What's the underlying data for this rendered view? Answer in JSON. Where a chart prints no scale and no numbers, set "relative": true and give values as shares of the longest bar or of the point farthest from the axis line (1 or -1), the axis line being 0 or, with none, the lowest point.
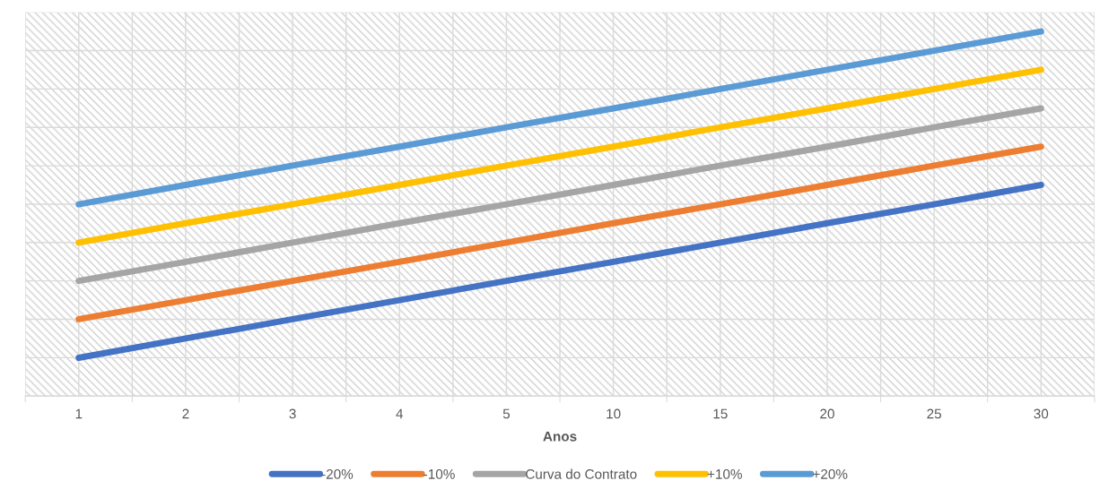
{
  "chart_data": {
    "type": "line",
    "xlabel": "Anos",
    "relative": true,
    "grid": true,
    "legend": "bottom",
    "marker": "none",
    "line_style": "solid",
    "categories": [
      "1",
      "2",
      "3",
      "4",
      "5",
      "10",
      "15",
      "20",
      "25",
      "30"
    ],
    "series": [
      {
        "name": "-20%",
        "color": "#4472c4",
        "values": [
          0.105,
          0.158,
          0.211,
          0.263,
          0.316,
          0.368,
          0.421,
          0.474,
          0.526,
          0.579
        ]
      },
      {
        "name": "-10%",
        "color": "#ed7d31",
        "values": [
          0.211,
          0.263,
          0.316,
          0.368,
          0.421,
          0.474,
          0.526,
          0.579,
          0.632,
          0.684
        ]
      },
      {
        "name": "Curva do Contrato",
        "color": "#a5a5a5",
        "values": [
          0.316,
          0.368,
          0.421,
          0.474,
          0.526,
          0.579,
          0.632,
          0.684,
          0.737,
          0.789
        ]
      },
      {
        "name": "+10%",
        "color": "#ffc000",
        "values": [
          0.421,
          0.474,
          0.526,
          0.579,
          0.632,
          0.684,
          0.737,
          0.789,
          0.842,
          0.895
        ]
      },
      {
        "name": "+20%",
        "color": "#5b9bd5",
        "values": [
          0.526,
          0.579,
          0.632,
          0.684,
          0.737,
          0.789,
          0.842,
          0.895,
          0.947,
          1.0
        ]
      }
    ]
  }
}
